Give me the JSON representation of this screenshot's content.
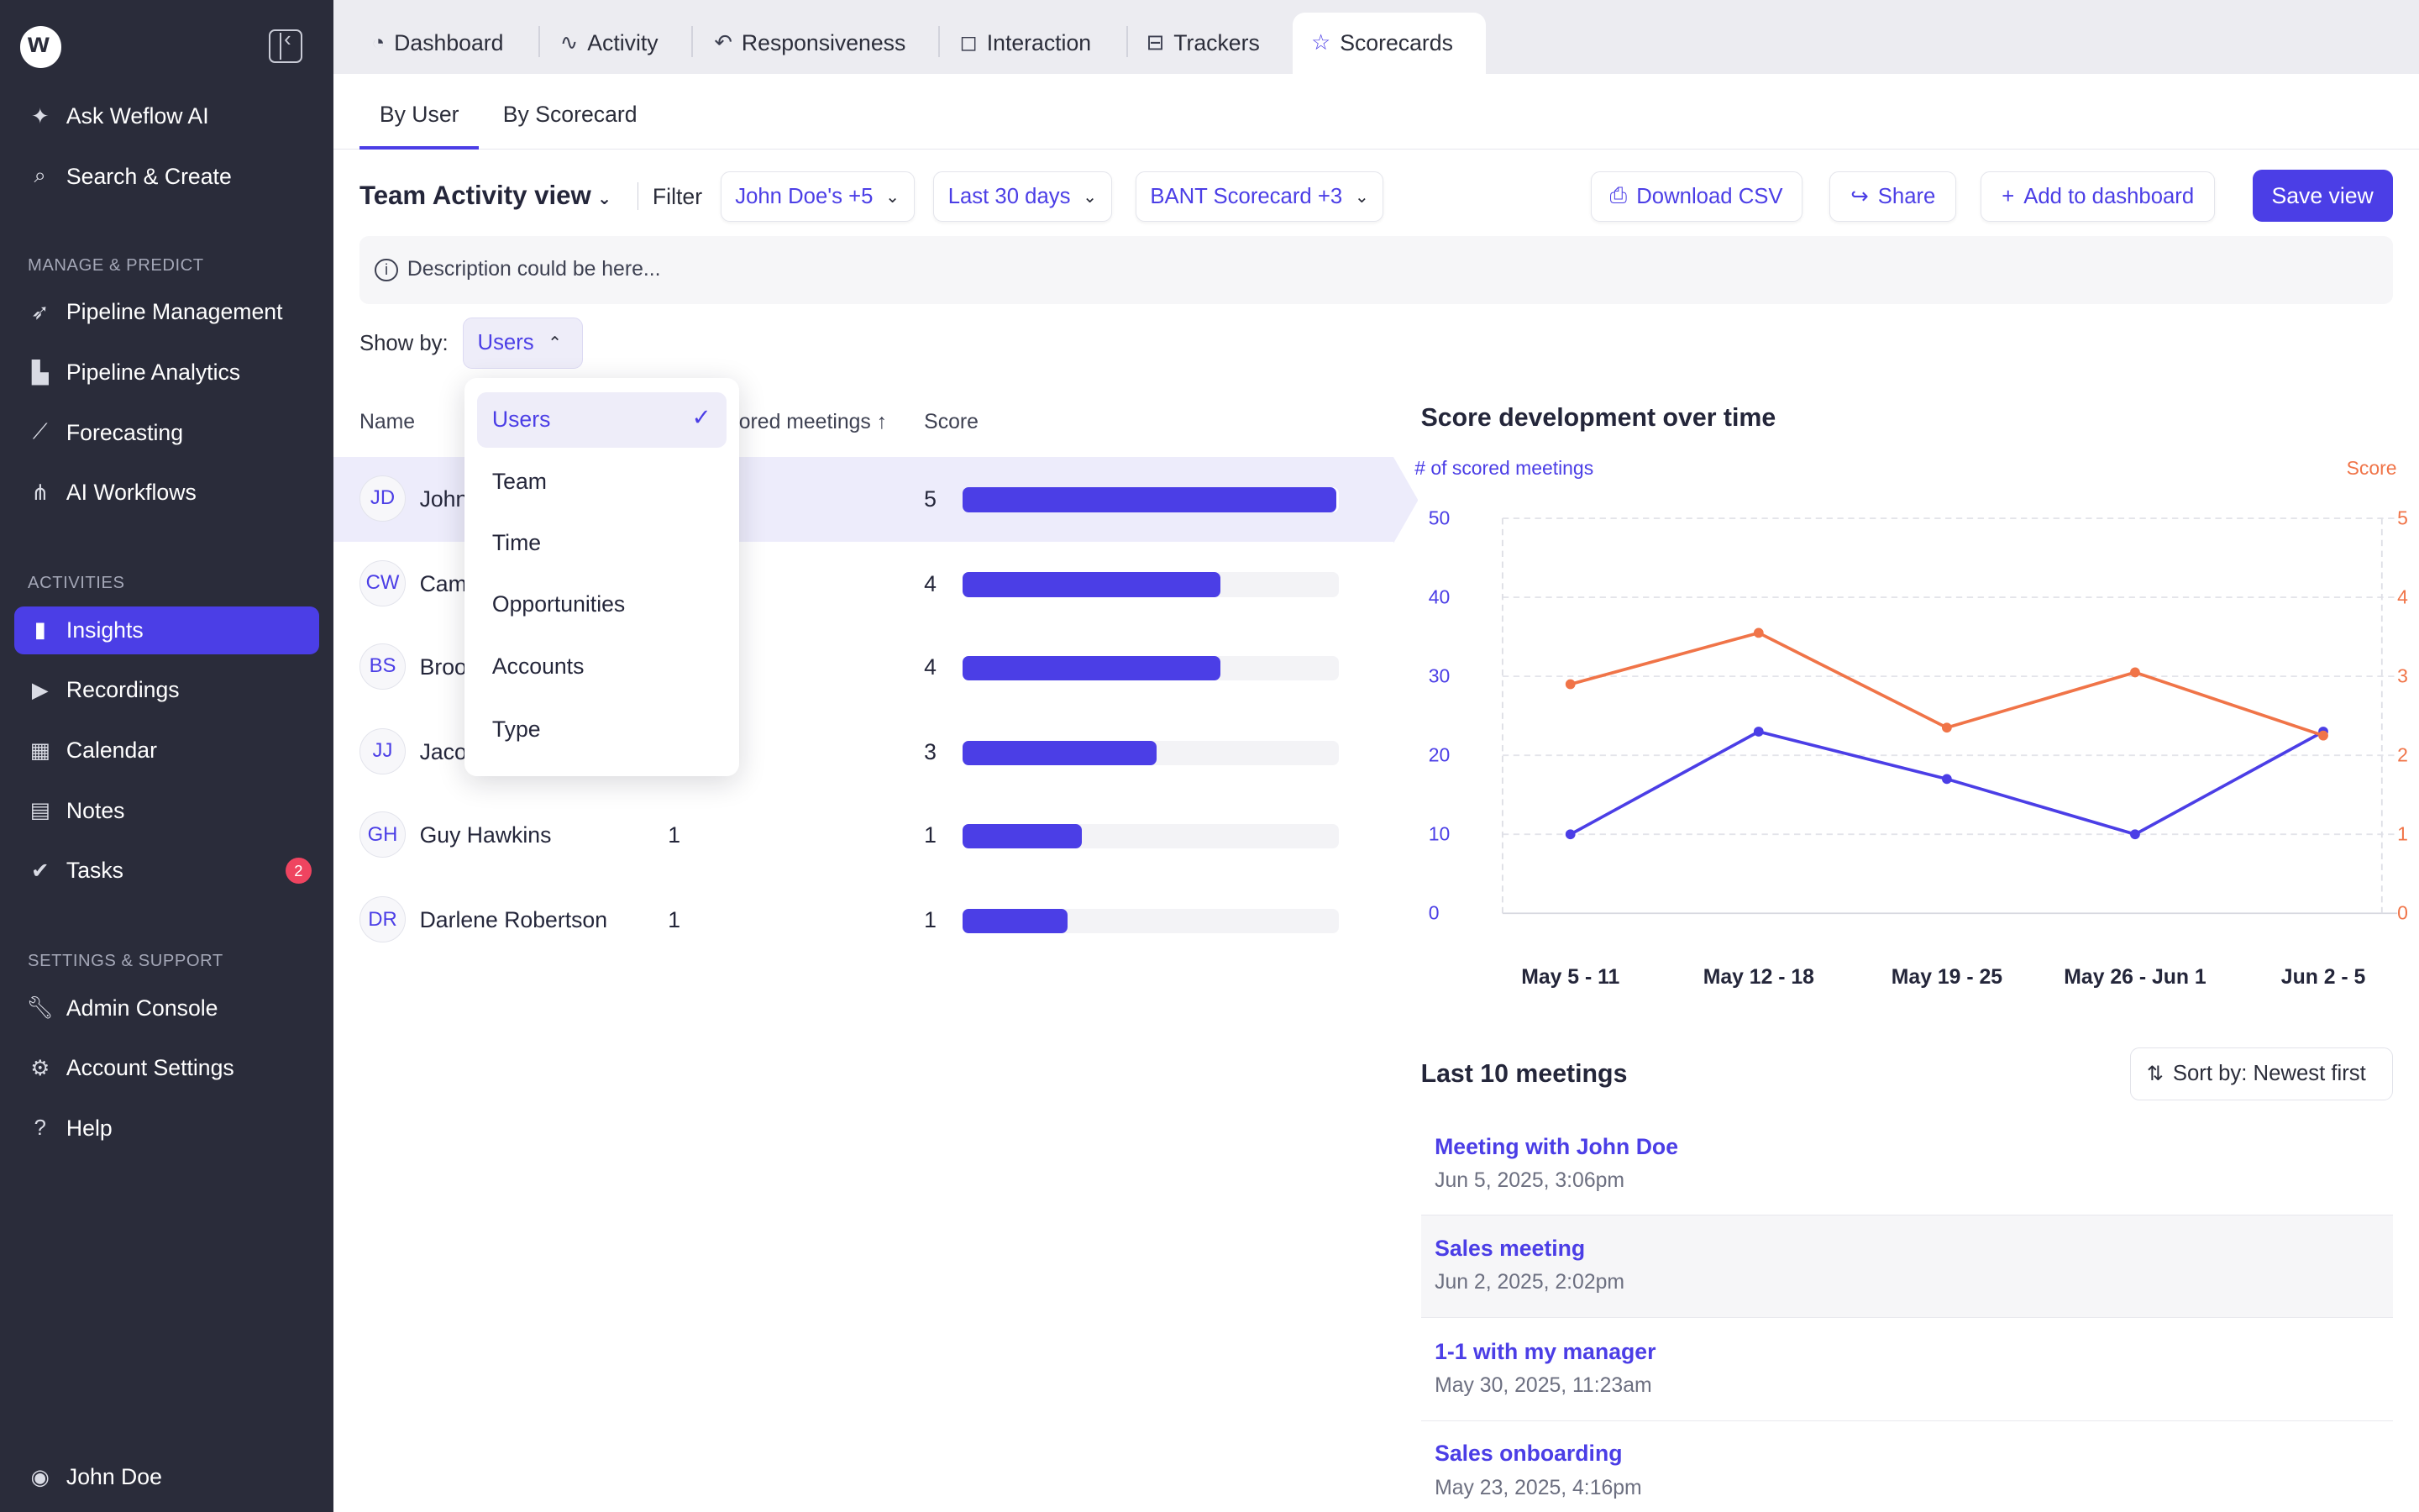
{
  "sidebar": {
    "ask_label": "Ask Weflow AI",
    "search_label": "Search & Create",
    "section_manage": "MANAGE & PREDICT",
    "section_activities": "ACTIVITIES",
    "section_settings": "SETTINGS & SUPPORT",
    "manage_items": [
      {
        "label": "Pipeline Management",
        "icon": "rocket-icon"
      },
      {
        "label": "Pipeline Analytics",
        "icon": "bar-chart-icon"
      },
      {
        "label": "Forecasting",
        "icon": "trend-chart-icon"
      },
      {
        "label": "AI Workflows",
        "icon": "workflow-icon"
      }
    ],
    "activity_items": [
      {
        "label": "Insights",
        "icon": "insights-icon",
        "active": true
      },
      {
        "label": "Recordings",
        "icon": "play-icon"
      },
      {
        "label": "Calendar",
        "icon": "calendar-icon"
      },
      {
        "label": "Notes",
        "icon": "notes-icon"
      },
      {
        "label": "Tasks",
        "icon": "check-circle-icon",
        "badge": "2"
      }
    ],
    "settings_items": [
      {
        "label": "Admin Console",
        "icon": "wrench-icon"
      },
      {
        "label": "Account Settings",
        "icon": "gear-icon"
      },
      {
        "label": "Help",
        "icon": "help-icon"
      }
    ],
    "user_label": "John Doe"
  },
  "top_tabs": [
    {
      "label": "Dashboard",
      "icon": "dashboard-icon"
    },
    {
      "label": "Activity",
      "icon": "activity-icon"
    },
    {
      "label": "Responsiveness",
      "icon": "reply-icon"
    },
    {
      "label": "Interaction",
      "icon": "chat-icon"
    },
    {
      "label": "Trackers",
      "icon": "tracker-icon"
    },
    {
      "label": "Scorecards",
      "icon": "star-icon",
      "active": true
    }
  ],
  "sub_tabs": [
    {
      "label": "By User",
      "active": true
    },
    {
      "label": "By Scorecard"
    }
  ],
  "toolbar": {
    "view_title": "Team Activity view",
    "filter_label": "Filter",
    "filter_users": "John Doe's +5",
    "filter_period": "Last 30 days",
    "filter_scorecard": "BANT Scorecard +3",
    "download_label": "Download CSV",
    "share_label": "Share",
    "add_dashboard_label": "Add to dashboard",
    "save_label": "Save view"
  },
  "description": "Description could be here...",
  "show_by": {
    "label": "Show by:",
    "value": "Users",
    "options": [
      "Users",
      "Team",
      "Time",
      "Opportunities",
      "Accounts",
      "Type"
    ]
  },
  "table": {
    "headers": {
      "name": "Name",
      "meetings": "ored meetings",
      "score": "Score"
    },
    "rows": [
      {
        "initials": "JD",
        "name": "John",
        "meetings": "",
        "score": "5",
        "fraction": 1.0
      },
      {
        "initials": "CW",
        "name": "Cam",
        "meetings": "",
        "score": "4",
        "fraction": 0.69
      },
      {
        "initials": "BS",
        "name": "Broo",
        "meetings": "",
        "score": "4",
        "fraction": 0.69
      },
      {
        "initials": "JJ",
        "name": "Jaco",
        "meetings": "",
        "score": "3",
        "fraction": 0.52
      },
      {
        "initials": "GH",
        "name": "Guy Hawkins",
        "meetings": "1",
        "score": "1",
        "fraction": 0.32
      },
      {
        "initials": "DR",
        "name": "Darlene Robertson",
        "meetings": "1",
        "score": "1",
        "fraction": 0.28
      }
    ]
  },
  "chart": {
    "title": "Score development over time",
    "left_axis_title": "# of scored meetings",
    "right_axis_title": "Score"
  },
  "chart_data": {
    "type": "line",
    "title": "Score development over time",
    "categories": [
      "May 5 - 11",
      "May 12 - 18",
      "May 19 - 25",
      "May 26 - Jun 1",
      "Jun 2 - 5"
    ],
    "left_ticks": [
      "0",
      "10",
      "20",
      "30",
      "40",
      "50"
    ],
    "right_ticks": [
      "0",
      "1",
      "2",
      "3",
      "4",
      "5"
    ],
    "ylim_left": [
      0,
      50
    ],
    "ylim_right": [
      0,
      5
    ],
    "grid": true,
    "series": [
      {
        "name": "# of scored meetings",
        "axis": "left",
        "color": "#4b3ee6",
        "values": [
          10,
          23,
          17,
          10,
          23
        ]
      },
      {
        "name": "Score",
        "axis": "right",
        "color": "#f07448",
        "values": [
          2.9,
          3.55,
          2.35,
          3.05,
          2.25
        ]
      }
    ]
  },
  "meetings": {
    "title": "Last 10 meetings",
    "sort_label": "Sort by: Newest first",
    "items": [
      {
        "title": "Meeting with John Doe",
        "date": "Jun 5, 2025, 3:06pm"
      },
      {
        "title": "Sales meeting",
        "date": "Jun 2, 2025, 2:02pm"
      },
      {
        "title": "1-1 with my manager",
        "date": "May 30, 2025, 11:23am"
      },
      {
        "title": "Sales onboarding",
        "date": "May 23, 2025, 4:16pm"
      }
    ]
  },
  "colors": {
    "accent": "#4b3ee6",
    "sidebar_bg": "#2a2c3a",
    "score_line": "#f07448",
    "badge": "#ef4460"
  }
}
